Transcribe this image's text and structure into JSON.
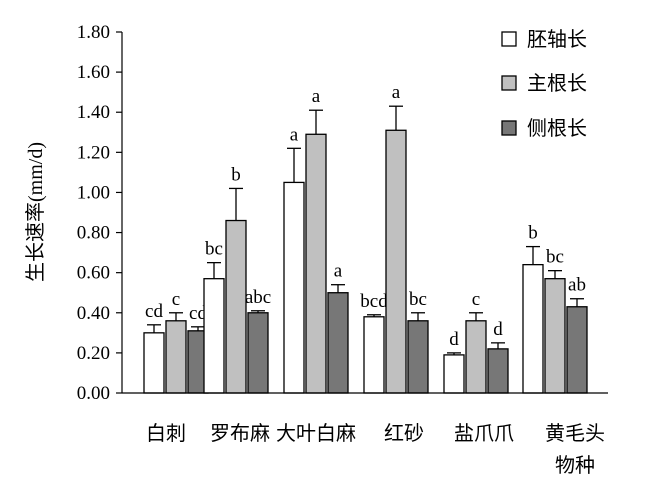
{
  "chart_data": {
    "type": "bar",
    "title": "",
    "ylabel": "生长速率(mm/d)",
    "xlabel": "物种",
    "ylim": [
      0,
      1.8
    ],
    "yticks": [
      "0.00",
      "0.20",
      "0.40",
      "0.60",
      "0.80",
      "1.00",
      "1.20",
      "1.40",
      "1.60",
      "1.80"
    ],
    "grid": false,
    "legend_position": "top-right",
    "categories": [
      "白刺",
      "罗布麻",
      "大叶白麻",
      "红砂",
      "盐爪爪",
      "黄毛头"
    ],
    "series": [
      {
        "name": "胚轴长",
        "color": "#ffffff",
        "values": [
          0.3,
          0.57,
          1.05,
          0.38,
          0.19,
          0.64
        ],
        "errors": [
          0.04,
          0.08,
          0.17,
          0.01,
          0.01,
          0.09
        ],
        "letters": [
          "cd",
          "bc",
          "a",
          "bcd",
          "d",
          "b"
        ]
      },
      {
        "name": "主根长",
        "color": "#c0c0c0",
        "values": [
          0.36,
          0.86,
          1.29,
          1.31,
          0.36,
          0.57
        ],
        "errors": [
          0.04,
          0.16,
          0.12,
          0.12,
          0.04,
          0.04
        ],
        "letters": [
          "c",
          "b",
          "a",
          "a",
          "c",
          "bc"
        ]
      },
      {
        "name": "侧根长",
        "color": "#777777",
        "values": [
          0.31,
          0.4,
          0.5,
          0.36,
          0.22,
          0.43
        ],
        "errors": [
          0.02,
          0.01,
          0.04,
          0.04,
          0.03,
          0.04
        ],
        "letters": [
          "cd",
          "abc",
          "a",
          "bc",
          "d",
          "ab"
        ]
      }
    ]
  }
}
